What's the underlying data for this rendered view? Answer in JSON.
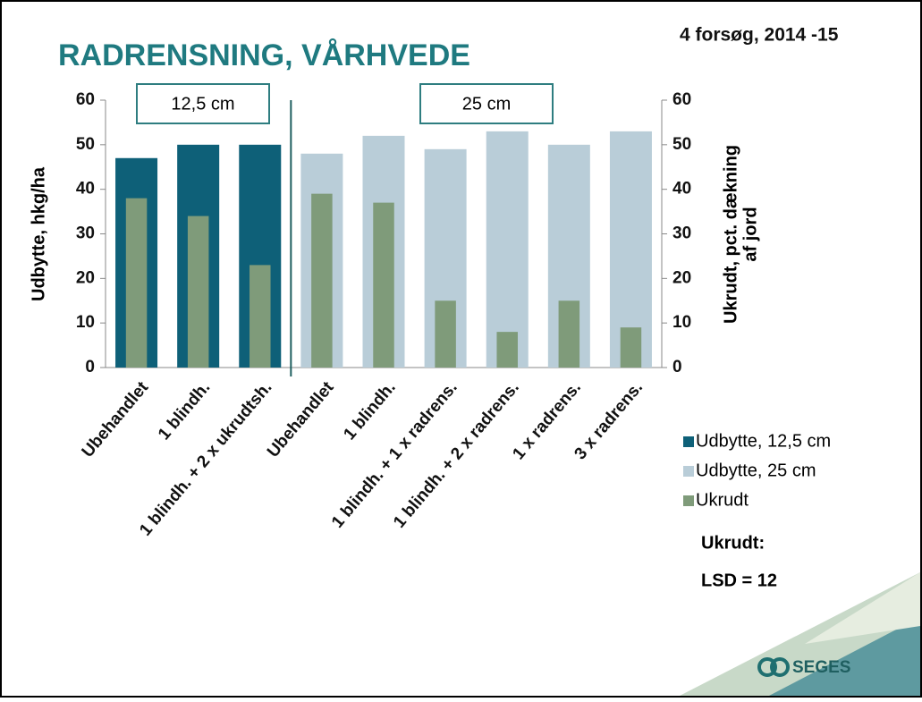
{
  "chart_data": {
    "type": "bar",
    "title": "RADRENSNING, VÅRHVEDE",
    "subtitle": "4 forsøg, 2014 -15",
    "ylabel": "Udbytte, hkg/ha",
    "y2label": [
      "Ukrudt, pct. dækning",
      "af jord"
    ],
    "categories": [
      "Ubehandlet",
      "1 blindh.",
      "1 blindh. + 2 x ukrudtsh.",
      "Ubehandlet",
      "1 blindh.",
      "1 blindh. + 1 x radrens.",
      "1 blindh. + 2 x radrens.",
      "1 x radrens.",
      "3 x radrens."
    ],
    "series": [
      {
        "name": "Udbytte, 12,5 cm",
        "color": "#0e6078",
        "values": [
          47,
          50,
          50,
          null,
          null,
          null,
          null,
          null,
          null
        ]
      },
      {
        "name": "Udbytte, 25 cm",
        "color": "#b9cdd8",
        "values": [
          null,
          null,
          null,
          48,
          52,
          49,
          53,
          50,
          53
        ]
      },
      {
        "name": "Ukrudt",
        "color": "#7f9b7a",
        "axis": "y2",
        "values": [
          38,
          34,
          23,
          39,
          37,
          15,
          8,
          15,
          9
        ]
      }
    ],
    "ylim": [
      0,
      60
    ],
    "yticks": [
      0,
      10,
      20,
      30,
      40,
      50,
      60
    ],
    "y2lim": [
      0,
      60
    ],
    "y2ticks": [
      0,
      10,
      20,
      30,
      40,
      50,
      60
    ],
    "annotations": [
      "12,5 cm",
      "25 cm"
    ],
    "note": [
      "Ukrudt:",
      "LSD = 12"
    ],
    "logo": "SEGES"
  }
}
